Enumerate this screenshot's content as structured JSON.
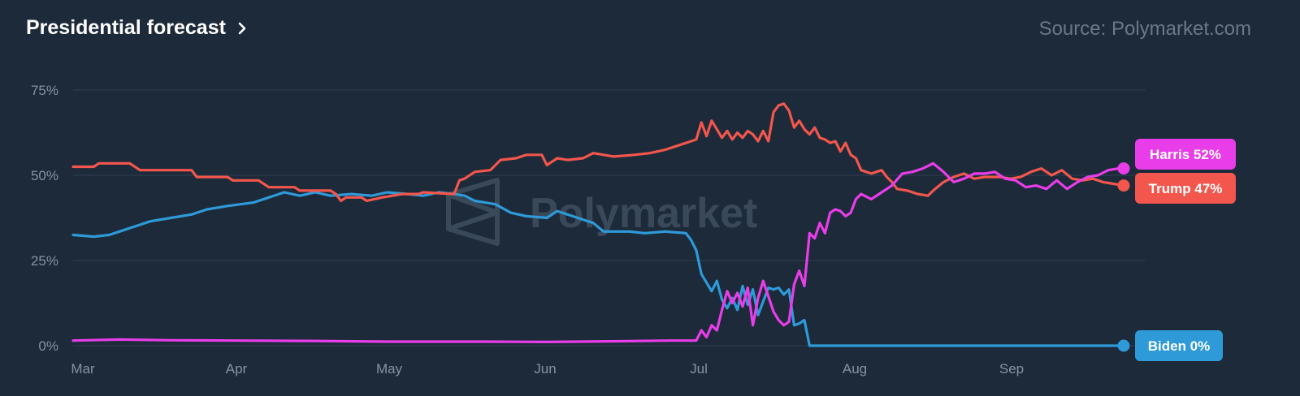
{
  "header": {
    "title": "Presidential forecast",
    "source": "Source: Polymarket.com"
  },
  "watermark": {
    "text": "Polymarket"
  },
  "icons": {
    "title_link": "chevron-right-icon",
    "watermark": "polymarket-logo-icon"
  },
  "colors": {
    "background": "#1c2a3a",
    "grid": "#2c3b4c",
    "harris": "#e83de8",
    "trump": "#f2564c",
    "biden": "#2e9ad8"
  },
  "chart_data": {
    "type": "line",
    "xlabel": "",
    "ylabel": "",
    "x_ticks": [
      "Mar",
      "Apr",
      "May",
      "Jun",
      "Jul",
      "Aug",
      "Sep"
    ],
    "y_ticks": [
      "75%",
      "50%",
      "25%",
      "0%"
    ],
    "ylim": [
      0,
      75
    ],
    "x_range": [
      "2024-03-01",
      "2024-09-21"
    ],
    "grid": true,
    "series": [
      {
        "name": "Trump",
        "color": "#f2564c",
        "end_label": "Trump 47%",
        "points": [
          [
            "2024-03-01",
            52.5
          ],
          [
            "2024-03-05",
            52.5
          ],
          [
            "2024-03-06",
            53.5
          ],
          [
            "2024-03-12",
            53.5
          ],
          [
            "2024-03-14",
            51.5
          ],
          [
            "2024-03-24",
            51.5
          ],
          [
            "2024-03-25",
            49.5
          ],
          [
            "2024-03-31",
            49.5
          ],
          [
            "2024-04-01",
            48.5
          ],
          [
            "2024-04-06",
            48.5
          ],
          [
            "2024-04-08",
            46.5
          ],
          [
            "2024-04-13",
            46.5
          ],
          [
            "2024-04-14",
            45.5
          ],
          [
            "2024-04-20",
            45.5
          ],
          [
            "2024-04-21",
            44.5
          ],
          [
            "2024-04-22",
            42.5
          ],
          [
            "2024-04-23",
            43.5
          ],
          [
            "2024-04-26",
            43.5
          ],
          [
            "2024-04-27",
            42.5
          ],
          [
            "2024-04-30",
            43.5
          ],
          [
            "2024-05-04",
            44.5
          ],
          [
            "2024-05-07",
            44.5
          ],
          [
            "2024-05-08",
            45.0
          ],
          [
            "2024-05-14",
            44.5
          ],
          [
            "2024-05-15",
            48.5
          ],
          [
            "2024-05-16",
            49.0
          ],
          [
            "2024-05-18",
            51.0
          ],
          [
            "2024-05-21",
            51.5
          ],
          [
            "2024-05-23",
            54.5
          ],
          [
            "2024-05-26",
            55.0
          ],
          [
            "2024-05-28",
            56.0
          ],
          [
            "2024-05-31",
            56.0
          ],
          [
            "2024-06-01",
            53.0
          ],
          [
            "2024-06-03",
            55.0
          ],
          [
            "2024-06-05",
            54.5
          ],
          [
            "2024-06-08",
            55.0
          ],
          [
            "2024-06-10",
            56.5
          ],
          [
            "2024-06-14",
            55.5
          ],
          [
            "2024-06-18",
            56.0
          ],
          [
            "2024-06-21",
            56.5
          ],
          [
            "2024-06-24",
            57.5
          ],
          [
            "2024-06-26",
            58.5
          ],
          [
            "2024-06-28",
            59.5
          ],
          [
            "2024-06-30",
            60.5
          ],
          [
            "2024-07-01",
            65.5
          ],
          [
            "2024-07-02",
            61.5
          ],
          [
            "2024-07-03",
            66.0
          ],
          [
            "2024-07-04",
            63.5
          ],
          [
            "2024-07-05",
            61.0
          ],
          [
            "2024-07-06",
            63.0
          ],
          [
            "2024-07-07",
            60.5
          ],
          [
            "2024-07-08",
            62.5
          ],
          [
            "2024-07-09",
            61.0
          ],
          [
            "2024-07-10",
            63.0
          ],
          [
            "2024-07-11",
            62.0
          ],
          [
            "2024-07-12",
            60.0
          ],
          [
            "2024-07-13",
            63.0
          ],
          [
            "2024-07-14",
            60.0
          ],
          [
            "2024-07-15",
            68.5
          ],
          [
            "2024-07-16",
            70.5
          ],
          [
            "2024-07-17",
            71.0
          ],
          [
            "2024-07-18",
            69.0
          ],
          [
            "2024-07-19",
            64.0
          ],
          [
            "2024-07-20",
            66.0
          ],
          [
            "2024-07-21",
            63.5
          ],
          [
            "2024-07-22",
            62.0
          ],
          [
            "2024-07-23",
            64.0
          ],
          [
            "2024-07-24",
            61.0
          ],
          [
            "2024-07-25",
            60.5
          ],
          [
            "2024-07-26",
            59.5
          ],
          [
            "2024-07-27",
            60.0
          ],
          [
            "2024-07-28",
            57.0
          ],
          [
            "2024-07-29",
            59.5
          ],
          [
            "2024-07-30",
            56.0
          ],
          [
            "2024-07-31",
            55.0
          ],
          [
            "2024-08-01",
            51.5
          ],
          [
            "2024-08-03",
            50.5
          ],
          [
            "2024-08-05",
            51.5
          ],
          [
            "2024-08-06",
            49.5
          ],
          [
            "2024-08-07",
            48.0
          ],
          [
            "2024-08-08",
            46.0
          ],
          [
            "2024-08-10",
            45.5
          ],
          [
            "2024-08-12",
            44.5
          ],
          [
            "2024-08-14",
            44.0
          ],
          [
            "2024-08-15",
            45.5
          ],
          [
            "2024-08-17",
            48.0
          ],
          [
            "2024-08-19",
            49.5
          ],
          [
            "2024-08-21",
            50.5
          ],
          [
            "2024-08-23",
            49.0
          ],
          [
            "2024-08-25",
            49.5
          ],
          [
            "2024-08-28",
            49.5
          ],
          [
            "2024-08-30",
            49.0
          ],
          [
            "2024-09-01",
            49.5
          ],
          [
            "2024-09-03",
            51.0
          ],
          [
            "2024-09-05",
            52.0
          ],
          [
            "2024-09-07",
            50.0
          ],
          [
            "2024-09-09",
            51.5
          ],
          [
            "2024-09-11",
            49.0
          ],
          [
            "2024-09-13",
            48.5
          ],
          [
            "2024-09-15",
            49.0
          ],
          [
            "2024-09-17",
            48.0
          ],
          [
            "2024-09-19",
            47.5
          ],
          [
            "2024-09-21",
            47.0
          ]
        ]
      },
      {
        "name": "Harris",
        "color": "#e83de8",
        "end_label": "Harris 52%",
        "points": [
          [
            "2024-03-01",
            1.5
          ],
          [
            "2024-03-10",
            1.8
          ],
          [
            "2024-03-20",
            1.6
          ],
          [
            "2024-04-01",
            1.5
          ],
          [
            "2024-04-15",
            1.4
          ],
          [
            "2024-05-01",
            1.2
          ],
          [
            "2024-05-20",
            1.2
          ],
          [
            "2024-06-01",
            1.1
          ],
          [
            "2024-06-15",
            1.3
          ],
          [
            "2024-06-25",
            1.5
          ],
          [
            "2024-06-30",
            1.5
          ],
          [
            "2024-07-01",
            4.5
          ],
          [
            "2024-07-02",
            2.5
          ],
          [
            "2024-07-03",
            6.0
          ],
          [
            "2024-07-04",
            4.5
          ],
          [
            "2024-07-05",
            10.5
          ],
          [
            "2024-07-06",
            16.0
          ],
          [
            "2024-07-07",
            12.5
          ],
          [
            "2024-07-08",
            15.5
          ],
          [
            "2024-07-09",
            11.5
          ],
          [
            "2024-07-10",
            17.0
          ],
          [
            "2024-07-11",
            6.0
          ],
          [
            "2024-07-12",
            14.0
          ],
          [
            "2024-07-13",
            19.0
          ],
          [
            "2024-07-14",
            14.5
          ],
          [
            "2024-07-15",
            10.0
          ],
          [
            "2024-07-16",
            7.5
          ],
          [
            "2024-07-17",
            6.0
          ],
          [
            "2024-07-18",
            7.0
          ],
          [
            "2024-07-19",
            18.0
          ],
          [
            "2024-07-20",
            22.0
          ],
          [
            "2024-07-21",
            17.5
          ],
          [
            "2024-07-22",
            33.0
          ],
          [
            "2024-07-23",
            31.5
          ],
          [
            "2024-07-24",
            36.0
          ],
          [
            "2024-07-25",
            33.0
          ],
          [
            "2024-07-26",
            39.0
          ],
          [
            "2024-07-27",
            40.0
          ],
          [
            "2024-07-28",
            39.5
          ],
          [
            "2024-07-29",
            38.0
          ],
          [
            "2024-07-30",
            39.0
          ],
          [
            "2024-07-31",
            43.0
          ],
          [
            "2024-08-01",
            44.5
          ],
          [
            "2024-08-03",
            43.0
          ],
          [
            "2024-08-05",
            45.0
          ],
          [
            "2024-08-07",
            47.0
          ],
          [
            "2024-08-09",
            50.5
          ],
          [
            "2024-08-11",
            51.0
          ],
          [
            "2024-08-13",
            52.0
          ],
          [
            "2024-08-15",
            53.5
          ],
          [
            "2024-08-17",
            51.0
          ],
          [
            "2024-08-19",
            48.0
          ],
          [
            "2024-08-21",
            49.0
          ],
          [
            "2024-08-23",
            50.5
          ],
          [
            "2024-08-25",
            50.5
          ],
          [
            "2024-08-27",
            51.0
          ],
          [
            "2024-08-29",
            49.0
          ],
          [
            "2024-08-31",
            48.5
          ],
          [
            "2024-09-02",
            46.5
          ],
          [
            "2024-09-04",
            47.0
          ],
          [
            "2024-09-06",
            46.0
          ],
          [
            "2024-09-08",
            48.5
          ],
          [
            "2024-09-10",
            46.0
          ],
          [
            "2024-09-12",
            48.0
          ],
          [
            "2024-09-14",
            49.5
          ],
          [
            "2024-09-16",
            50.0
          ],
          [
            "2024-09-18",
            51.5
          ],
          [
            "2024-09-20",
            52.0
          ],
          [
            "2024-09-21",
            52.0
          ]
        ]
      },
      {
        "name": "Biden",
        "color": "#2e9ad8",
        "end_label": "Biden 0%",
        "points": [
          [
            "2024-03-01",
            32.5
          ],
          [
            "2024-03-05",
            32.0
          ],
          [
            "2024-03-08",
            32.5
          ],
          [
            "2024-03-10",
            33.5
          ],
          [
            "2024-03-13",
            35.0
          ],
          [
            "2024-03-16",
            36.5
          ],
          [
            "2024-03-20",
            37.5
          ],
          [
            "2024-03-24",
            38.5
          ],
          [
            "2024-03-27",
            40.0
          ],
          [
            "2024-03-31",
            41.0
          ],
          [
            "2024-04-05",
            42.0
          ],
          [
            "2024-04-08",
            43.5
          ],
          [
            "2024-04-11",
            45.0
          ],
          [
            "2024-04-14",
            44.0
          ],
          [
            "2024-04-17",
            45.0
          ],
          [
            "2024-04-20",
            44.0
          ],
          [
            "2024-04-24",
            44.5
          ],
          [
            "2024-04-28",
            44.0
          ],
          [
            "2024-05-01",
            45.0
          ],
          [
            "2024-05-05",
            44.5
          ],
          [
            "2024-05-08",
            44.0
          ],
          [
            "2024-05-11",
            45.0
          ],
          [
            "2024-05-14",
            44.5
          ],
          [
            "2024-05-16",
            44.0
          ],
          [
            "2024-05-18",
            42.5
          ],
          [
            "2024-05-22",
            41.5
          ],
          [
            "2024-05-25",
            39.0
          ],
          [
            "2024-05-28",
            38.0
          ],
          [
            "2024-06-01",
            37.5
          ],
          [
            "2024-06-03",
            39.5
          ],
          [
            "2024-06-06",
            38.0
          ],
          [
            "2024-06-08",
            37.0
          ],
          [
            "2024-06-10",
            36.0
          ],
          [
            "2024-06-12",
            33.5
          ],
          [
            "2024-06-17",
            33.5
          ],
          [
            "2024-06-20",
            33.0
          ],
          [
            "2024-06-24",
            33.5
          ],
          [
            "2024-06-28",
            33.0
          ],
          [
            "2024-06-29",
            31.0
          ],
          [
            "2024-06-30",
            28.0
          ],
          [
            "2024-07-01",
            21.0
          ],
          [
            "2024-07-02",
            18.5
          ],
          [
            "2024-07-03",
            16.0
          ],
          [
            "2024-07-04",
            19.0
          ],
          [
            "2024-07-05",
            13.5
          ],
          [
            "2024-07-06",
            11.0
          ],
          [
            "2024-07-07",
            14.0
          ],
          [
            "2024-07-08",
            10.5
          ],
          [
            "2024-07-09",
            17.5
          ],
          [
            "2024-07-10",
            12.0
          ],
          [
            "2024-07-11",
            16.5
          ],
          [
            "2024-07-12",
            9.0
          ],
          [
            "2024-07-13",
            13.0
          ],
          [
            "2024-07-14",
            17.0
          ],
          [
            "2024-07-15",
            16.5
          ],
          [
            "2024-07-16",
            17.0
          ],
          [
            "2024-07-17",
            15.0
          ],
          [
            "2024-07-18",
            16.5
          ],
          [
            "2024-07-19",
            6.0
          ],
          [
            "2024-07-20",
            6.5
          ],
          [
            "2024-07-21",
            7.5
          ],
          [
            "2024-07-22",
            0.0
          ],
          [
            "2024-08-01",
            0.0
          ],
          [
            "2024-09-01",
            0.0
          ],
          [
            "2024-09-21",
            0.0
          ]
        ]
      }
    ]
  }
}
